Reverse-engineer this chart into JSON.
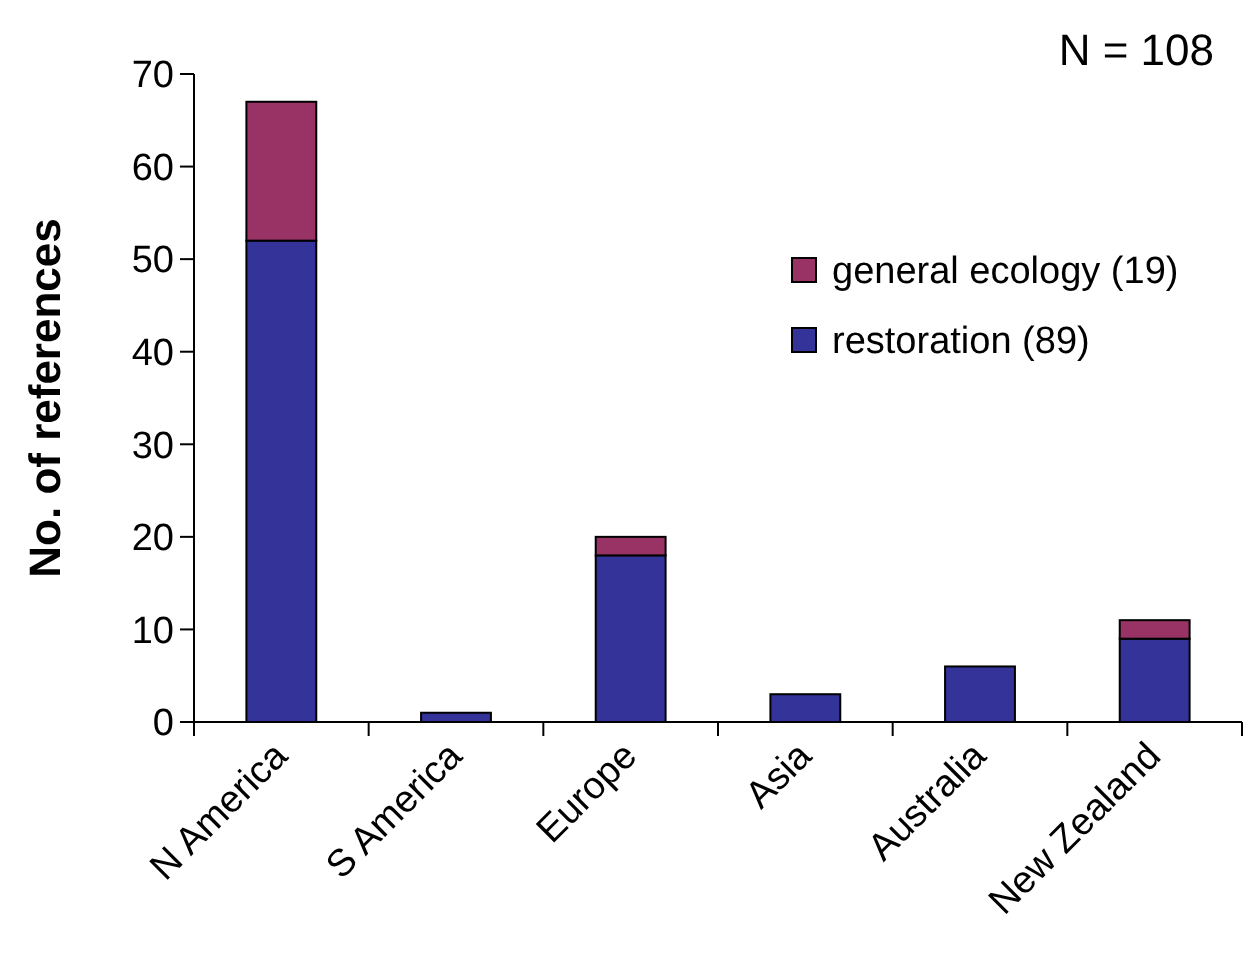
{
  "chart_data": {
    "type": "bar",
    "stacked": true,
    "ylabel": "No. of references",
    "annotations": [
      "N = 108"
    ],
    "categories": [
      "N America",
      "S America",
      "Europe",
      "Asia",
      "Australia",
      "New Zealand"
    ],
    "series": [
      {
        "name": "restoration (89)",
        "color": "#333399",
        "values": [
          52,
          1,
          18,
          3,
          6,
          9
        ]
      },
      {
        "name": "general ecology (19)",
        "color": "#993366",
        "values": [
          15,
          0,
          2,
          0,
          0,
          2
        ]
      }
    ],
    "ylim": [
      0,
      70
    ],
    "yticks": [
      0,
      10,
      20,
      30,
      40,
      50,
      60,
      70
    ],
    "grid": false,
    "legend": "top right"
  }
}
